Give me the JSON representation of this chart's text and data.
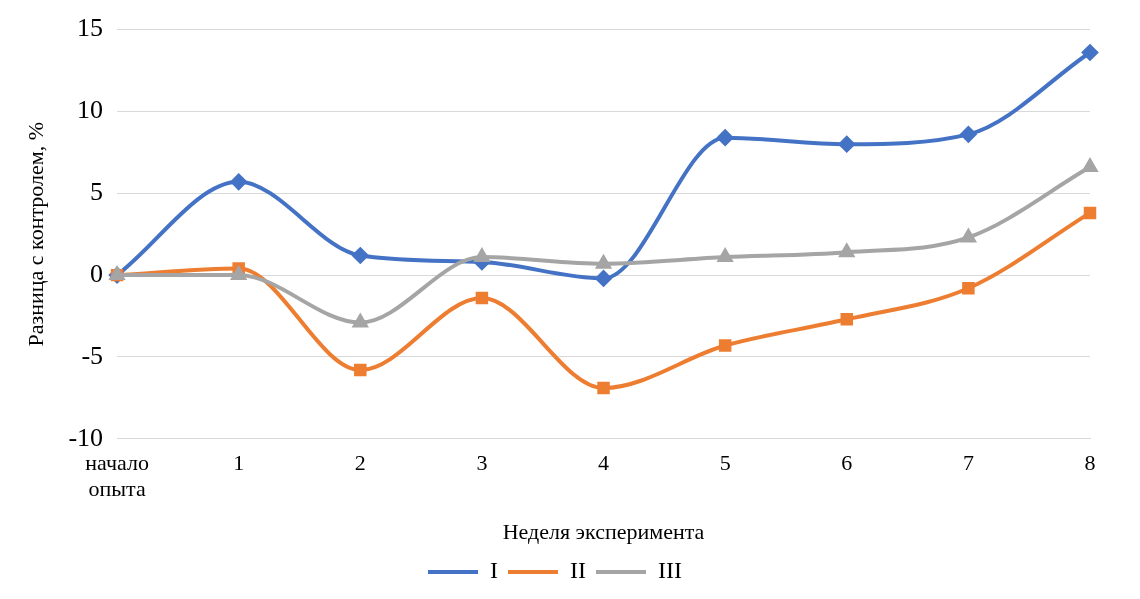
{
  "chart_data": {
    "type": "line",
    "xlabel": "Неделя эксперимента",
    "ylabel": "Разница с контролем, %",
    "categories": [
      "начало опыта",
      "1",
      "2",
      "3",
      "4",
      "5",
      "6",
      "7",
      "8"
    ],
    "series": [
      {
        "name": "I",
        "color": "#4472c4",
        "marker": "diamond",
        "values": [
          0,
          5.7,
          1.2,
          0.8,
          -0.2,
          8.4,
          8.0,
          8.6,
          13.6
        ]
      },
      {
        "name": "II",
        "color": "#ed7d31",
        "marker": "square",
        "values": [
          0,
          0.4,
          -5.8,
          -1.4,
          -6.9,
          -4.3,
          -2.7,
          -0.8,
          3.8
        ]
      },
      {
        "name": "III",
        "color": "#a5a5a5",
        "marker": "triangle",
        "values": [
          0,
          0,
          -2.9,
          1.1,
          0.7,
          1.1,
          1.4,
          2.3,
          6.6
        ]
      }
    ],
    "ylim": [
      -10,
      15
    ],
    "yticks": [
      -10,
      -5,
      0,
      5,
      10,
      15
    ],
    "grid": "y",
    "legend": "bottom"
  }
}
